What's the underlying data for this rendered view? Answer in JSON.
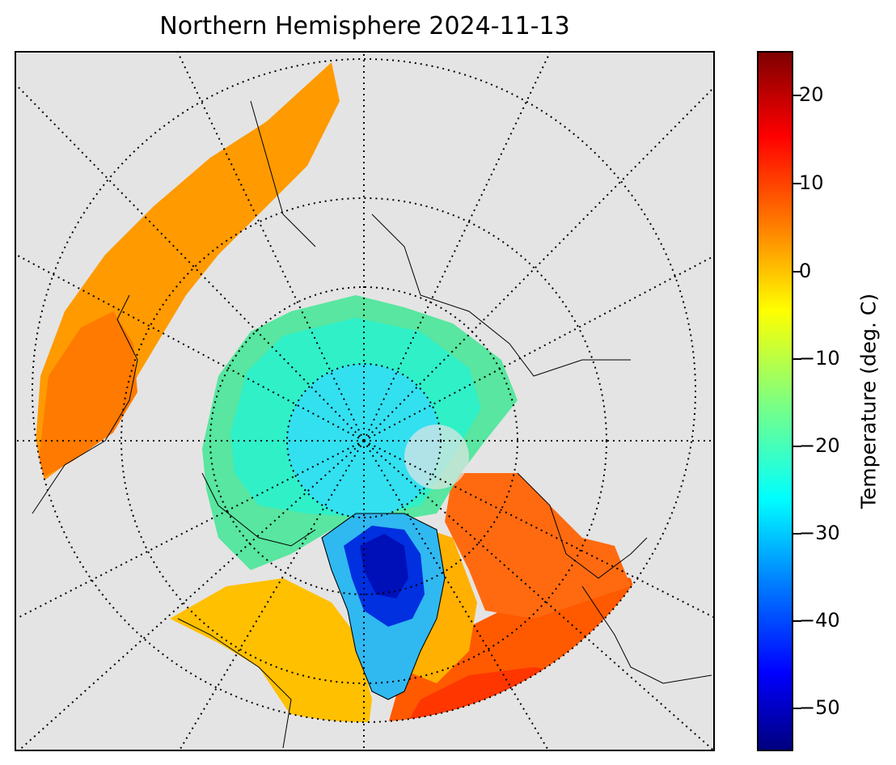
{
  "map": {
    "title": "Northern Hemisphere 2024-11-13",
    "projection": "north-polar-stereographic",
    "background_color": "#e4e4e4",
    "land_outline_color": "#000000",
    "graticule_style": "dotted"
  },
  "colorbar": {
    "label": "Temperature (deg. C)",
    "colormap": "jet",
    "range": [
      -55,
      25
    ],
    "ticks": [
      "20",
      "10",
      "0",
      "−10",
      "−20",
      "−30",
      "−40",
      "−50"
    ]
  }
}
